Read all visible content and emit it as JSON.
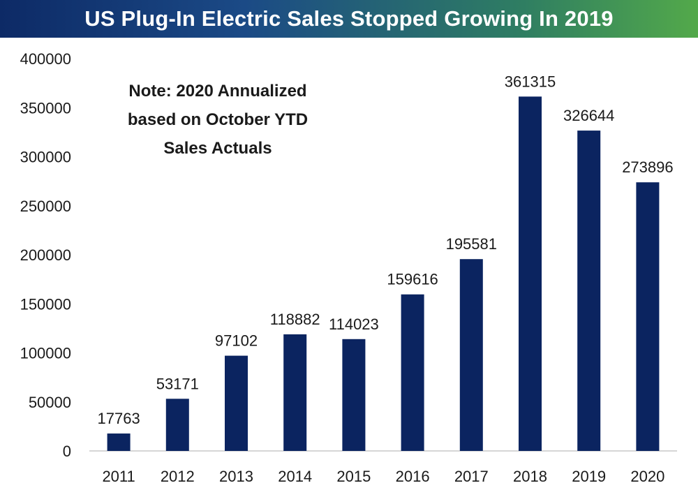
{
  "chart_data": {
    "type": "bar",
    "title": "US Plug-In Electric Sales Stopped Growing In 2019",
    "categories": [
      "2011",
      "2012",
      "2013",
      "2014",
      "2015",
      "2016",
      "2017",
      "2018",
      "2019",
      "2020"
    ],
    "values": [
      17763,
      53171,
      97102,
      118882,
      114023,
      159616,
      195581,
      361315,
      326644,
      273896
    ],
    "ylim": [
      0,
      400000
    ],
    "yticks": [
      0,
      50000,
      100000,
      150000,
      200000,
      250000,
      300000,
      350000,
      400000
    ],
    "xlabel": "",
    "ylabel": "",
    "grid": false,
    "legend": "none",
    "bar_color": "#0b2460",
    "annotation": [
      "Note: 2020 Annualized",
      "based on October YTD",
      "Sales Actuals"
    ]
  }
}
